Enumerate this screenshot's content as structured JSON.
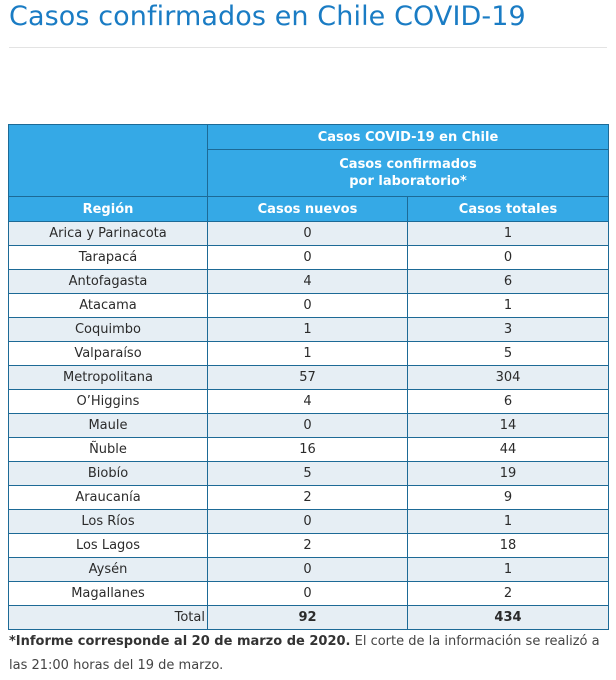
{
  "title": "Casos confirmados en Chile COVID-19",
  "table": {
    "group_header": "Casos COVID-19 en Chile",
    "sub_header_line1": "Casos confirmados",
    "sub_header_line2": "por laboratorio*",
    "columns": [
      "Región",
      "Casos nuevos",
      "Casos totales"
    ],
    "rows": [
      {
        "region": "Arica y Parinacota",
        "nuevos": "0",
        "totales": "1"
      },
      {
        "region": "Tarapacá",
        "nuevos": "0",
        "totales": "0"
      },
      {
        "region": "Antofagasta",
        "nuevos": "4",
        "totales": "6"
      },
      {
        "region": "Atacama",
        "nuevos": "0",
        "totales": "1"
      },
      {
        "region": "Coquimbo",
        "nuevos": "1",
        "totales": "3"
      },
      {
        "region": "Valparaíso",
        "nuevos": "1",
        "totales": "5"
      },
      {
        "region": "Metropolitana",
        "nuevos": "57",
        "totales": "304"
      },
      {
        "region": "O’Higgins",
        "nuevos": "4",
        "totales": "6"
      },
      {
        "region": "Maule",
        "nuevos": "0",
        "totales": "14"
      },
      {
        "region": "Ñuble",
        "nuevos": "16",
        "totales": "44"
      },
      {
        "region": "Biobío",
        "nuevos": "5",
        "totales": "19"
      },
      {
        "region": "Araucanía",
        "nuevos": "2",
        "totales": "9"
      },
      {
        "region": "Los Ríos",
        "nuevos": "0",
        "totales": "1"
      },
      {
        "region": "Los Lagos",
        "nuevos": "2",
        "totales": "18"
      },
      {
        "region": "Aysén",
        "nuevos": "0",
        "totales": "1"
      },
      {
        "region": "Magallanes",
        "nuevos": "0",
        "totales": "2"
      }
    ],
    "total": {
      "label": "Total",
      "nuevos": "92",
      "totales": "434"
    }
  },
  "footnote": {
    "bold": "*Informe corresponde al 20 de marzo de 2020.",
    "rest": " El corte de la información se realizó a las 21:00 horas del 19 de marzo."
  },
  "colors": {
    "title": "#1a7cc4",
    "header_bg": "#35a9e6",
    "border": "#1d6a96",
    "row_alt": "#e6eef4"
  }
}
